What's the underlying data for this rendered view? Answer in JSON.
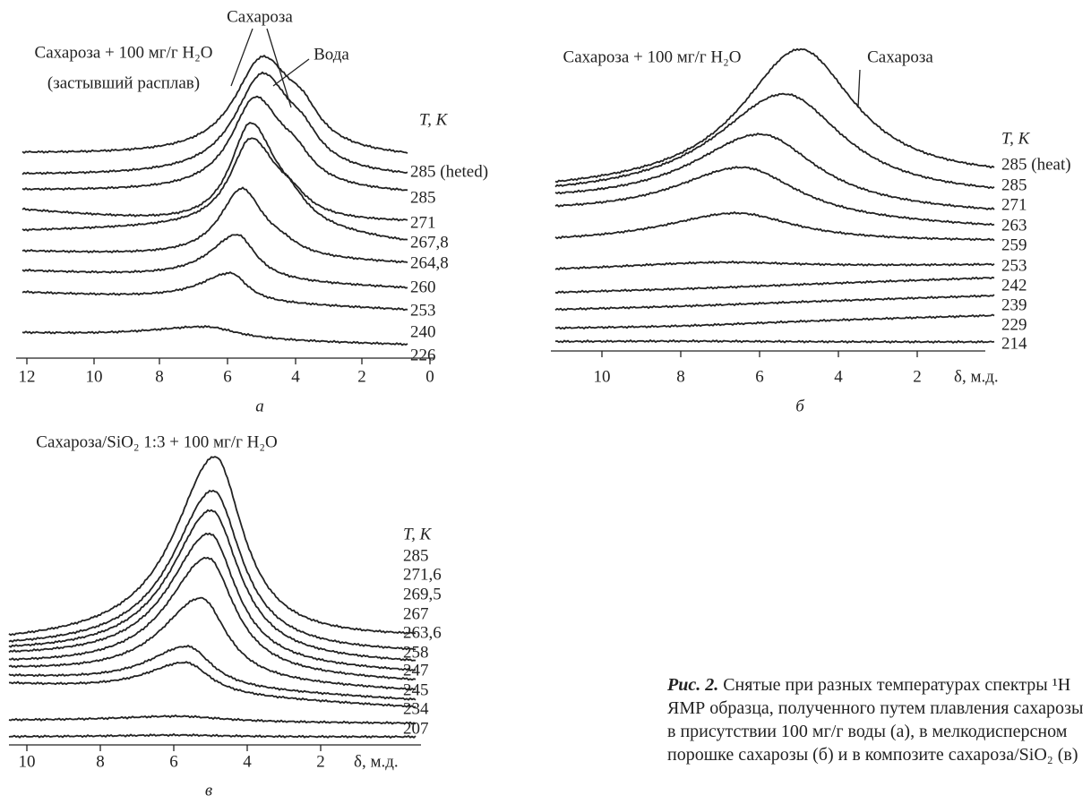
{
  "panels": [
    {
      "label": "а",
      "annotations": [
        "Сахароза",
        "Сахароза + 100 мг/г H₂O",
        "(застывший расплав)",
        "Вода"
      ],
      "temperature_axis_title": "T, К",
      "temperature_labels": [
        "285 (heted)",
        "285",
        "271",
        "267,8",
        "264,8",
        "260",
        "253",
        "240",
        "226"
      ],
      "x_tick_labels": [
        "12",
        "10",
        "8",
        "6",
        "4",
        "2",
        "0"
      ]
    },
    {
      "label": "б",
      "annotations": [
        "Сахароза + 100 мг/г H₂O",
        "Сахароза"
      ],
      "temperature_axis_title": "T, К",
      "temperature_labels": [
        "285 (heat)",
        "285",
        "271",
        "263",
        "259",
        "253",
        "242",
        "239",
        "229",
        "214"
      ],
      "x_tick_labels": [
        "10",
        "8",
        "6",
        "4",
        "2"
      ],
      "x_axis_title": "δ, м.д."
    },
    {
      "label": "в",
      "annotations": [
        "Сахароза/SiO₂ 1:3 + 100  мг/г H₂O"
      ],
      "temperature_axis_title": "T, К",
      "temperature_labels": [
        "285",
        "271,6",
        "269,5",
        "267",
        "263,6",
        "258",
        "247",
        "245",
        "234",
        "207"
      ],
      "x_tick_labels": [
        "10",
        "8",
        "6",
        "4",
        "2"
      ],
      "x_axis_title": "δ, м.д."
    }
  ],
  "caption": {
    "label": "Рис. 2.",
    "lines": [
      "Снятые при разных температурах спектры ¹H",
      "ЯМР образца, полученного путем плавления сахарозы",
      "в присутствии 100 мг/г воды (а), в мелкодисперсном",
      "порошке сахарозы (б) и в композите сахароза/SiO₂ (в)"
    ]
  }
}
